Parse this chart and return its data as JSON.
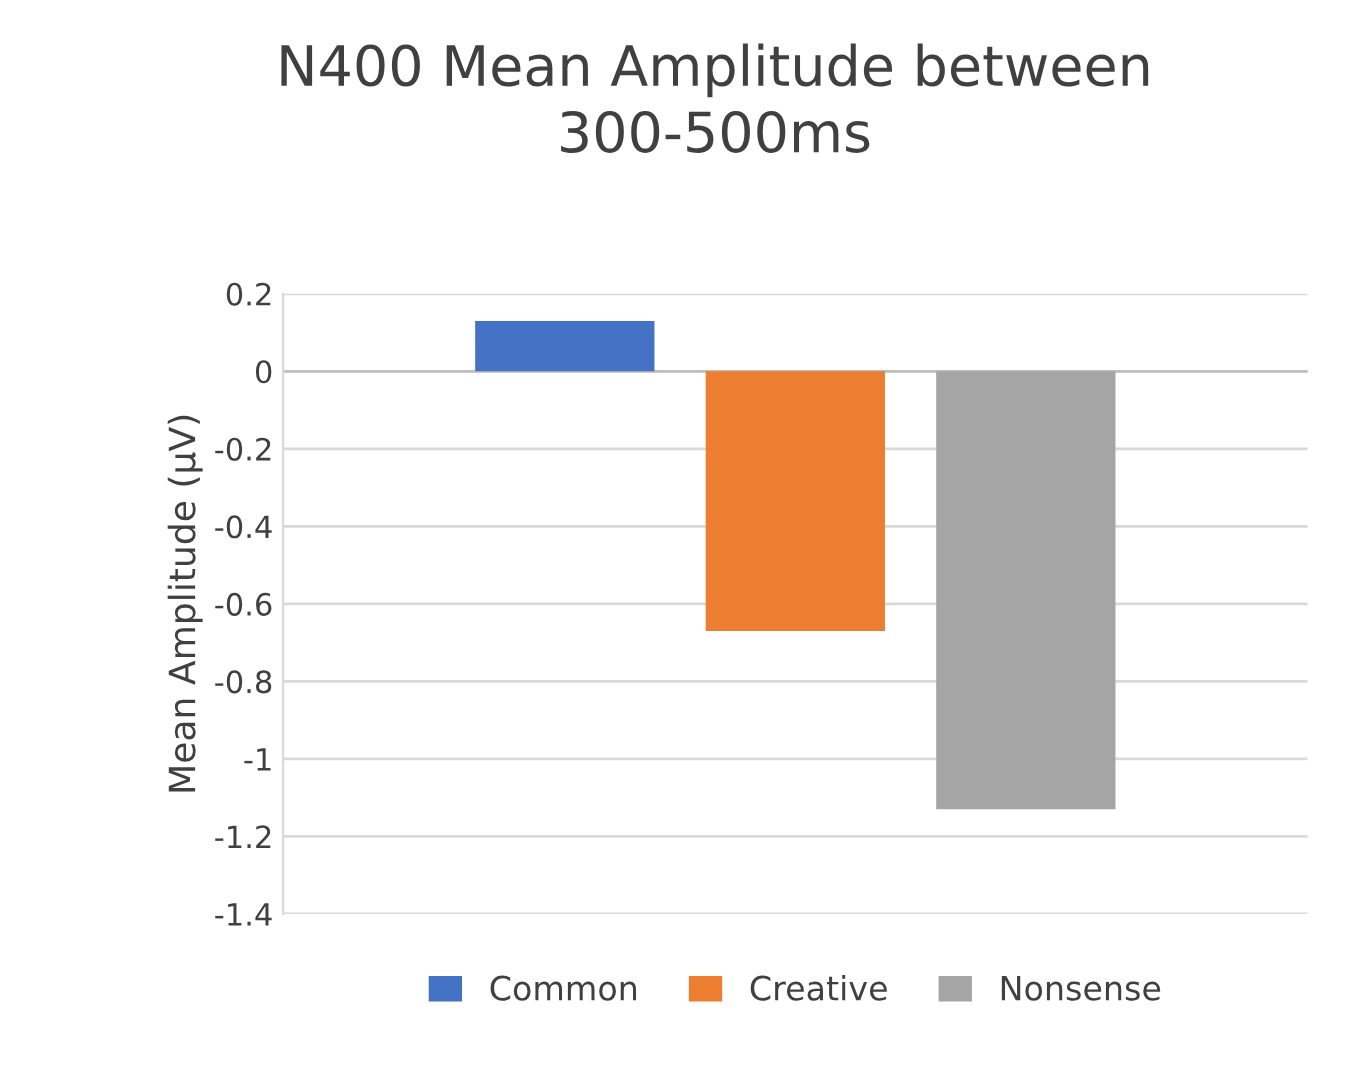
{
  "chart_data": {
    "type": "bar",
    "title": "N400 Mean Amplitude between\n300-500ms",
    "ylabel": "Mean Amplitude (µV)",
    "categories": [
      null
    ],
    "series": [
      {
        "name": "Common",
        "color": "#4472c4",
        "values": [
          0.13
        ]
      },
      {
        "name": "Creative",
        "color": "#ed7d31",
        "values": [
          -0.67
        ]
      },
      {
        "name": "Nonsense",
        "color": "#a5a5a5",
        "values": [
          -1.13
        ]
      }
    ],
    "ylim": [
      -1.4,
      0.2
    ],
    "yticks": [
      0.2,
      0,
      -0.2,
      -0.4,
      -0.6,
      -0.8,
      -1,
      -1.2,
      -1.4
    ],
    "grid": "y",
    "legend": "bottom"
  }
}
